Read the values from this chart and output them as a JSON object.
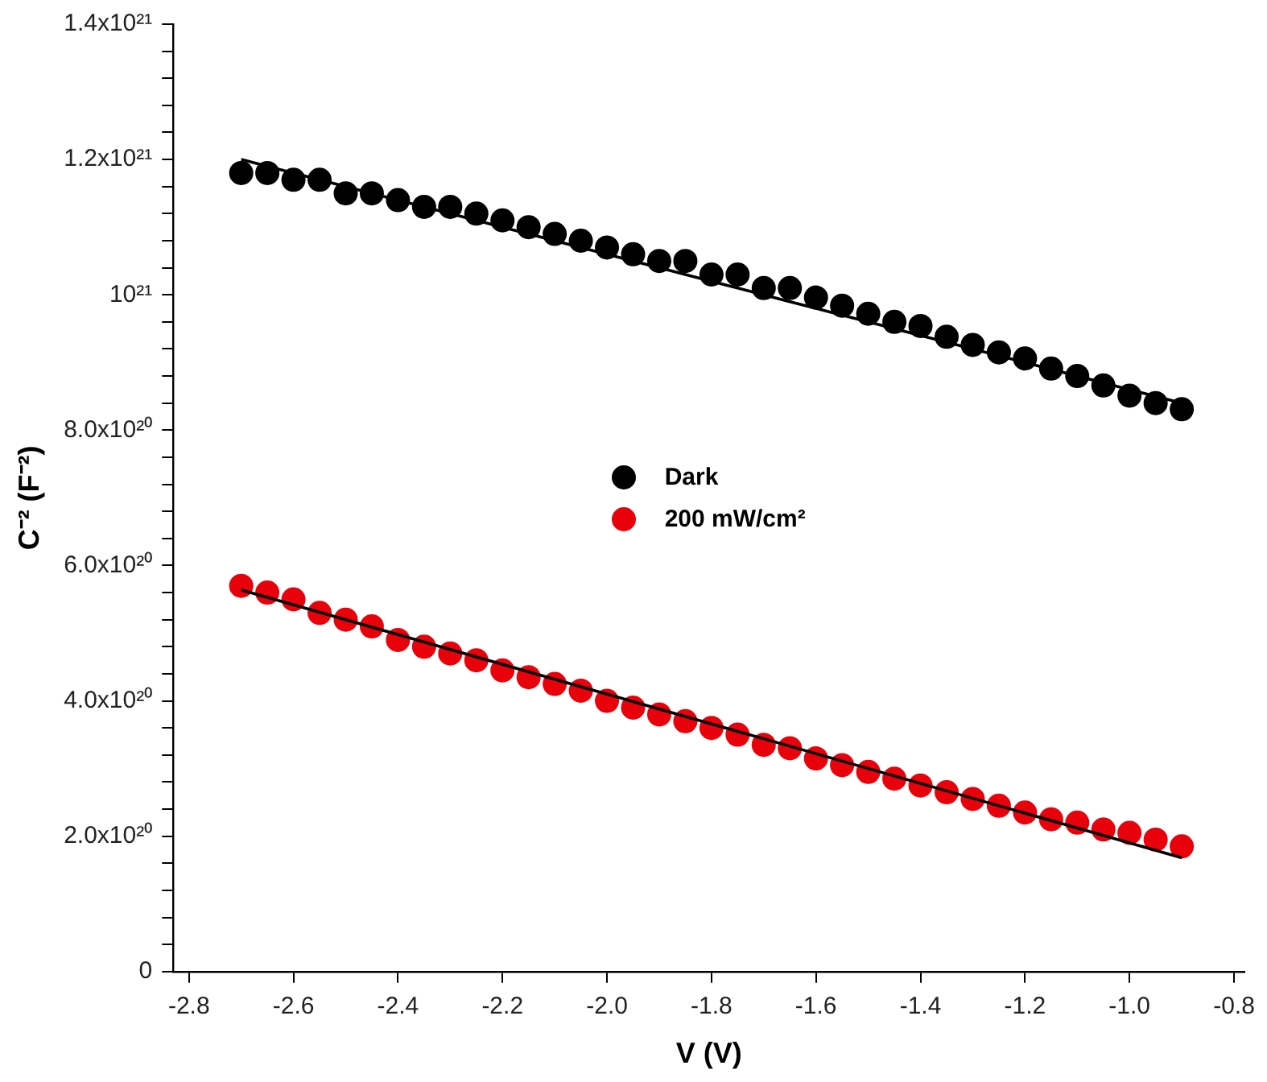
{
  "chart_data": {
    "type": "scatter",
    "xlabel": "V (V)",
    "ylabel": "C⁻² (F⁻²)",
    "xlim": [
      -2.83,
      -0.78
    ],
    "xticks": [
      -2.8,
      -2.6,
      -2.4,
      -2.2,
      {
        "value": -2,
        "label": "-2.0"
      },
      -1.8,
      -1.6,
      -1.4,
      -1.2,
      {
        "value": -1,
        "label": "-1.0"
      },
      -0.8
    ],
    "ylim": [
      0,
      1.4e+21
    ],
    "yticks": [
      {
        "value": 0,
        "label": "0"
      },
      {
        "value": 4e+19,
        "label": null
      },
      {
        "value": 8e+19,
        "label": null
      },
      {
        "value": 1.2e+20,
        "label": null
      },
      {
        "value": 1.6e+20,
        "label": null
      },
      {
        "value": 2e+20,
        "label": "2.0x10²⁰"
      },
      {
        "value": 2.4e+20,
        "label": null
      },
      {
        "value": 2.8e+20,
        "label": null
      },
      {
        "value": 3.2e+20,
        "label": null
      },
      {
        "value": 3.6e+20,
        "label": null
      },
      {
        "value": 4e+20,
        "label": "4.0x10²⁰"
      },
      {
        "value": 4.4e+20,
        "label": null
      },
      {
        "value": 4.8e+20,
        "label": null
      },
      {
        "value": 5.2e+20,
        "label": null
      },
      {
        "value": 5.6e+20,
        "label": null
      },
      {
        "value": 6e+20,
        "label": "6.0x10²⁰"
      },
      {
        "value": 6.4e+20,
        "label": null
      },
      {
        "value": 6.8e+20,
        "label": null
      },
      {
        "value": 7.2e+20,
        "label": null
      },
      {
        "value": 7.6e+20,
        "label": null
      },
      {
        "value": 8e+20,
        "label": "8.0x10²⁰"
      },
      {
        "value": 8.4e+20,
        "label": null
      },
      {
        "value": 8.8e+20,
        "label": null
      },
      {
        "value": 9.2e+20,
        "label": null
      },
      {
        "value": 9.6e+20,
        "label": null
      },
      {
        "value": 1e+21,
        "label": "10²¹"
      },
      {
        "value": 1.04e+21,
        "label": null
      },
      {
        "value": 1.08e+21,
        "label": null
      },
      {
        "value": 1.12e+21,
        "label": null
      },
      {
        "value": 1.16e+21,
        "label": null
      },
      {
        "value": 1.2e+21,
        "label": "1.2x10²¹"
      },
      {
        "value": 1.24e+21,
        "label": null
      },
      {
        "value": 1.28e+21,
        "label": null
      },
      {
        "value": 1.32e+21,
        "label": null
      },
      {
        "value": 1.36e+21,
        "label": null
      },
      {
        "value": 1.4e+21,
        "label": "1.4x10²¹"
      }
    ],
    "x": [
      -2.7,
      -2.65,
      -2.6,
      -2.55,
      -2.5,
      -2.45,
      -2.4,
      -2.35,
      -2.3,
      -2.25,
      -2.2,
      -2.15,
      -2.1,
      -2.05,
      -2,
      -1.95,
      -1.9,
      -1.85,
      -1.8,
      -1.75,
      -1.7,
      -1.65,
      -1.6,
      -1.55,
      -1.5,
      -1.45,
      -1.4,
      -1.35,
      -1.3,
      -1.25,
      -1.2,
      -1.15,
      -1.1,
      -1.05,
      -1,
      -0.95,
      -0.9
    ],
    "marker": "circle",
    "legend": "center",
    "grid": false,
    "series": [
      {
        "name": "Dark",
        "type": "scatter",
        "color": "#000000",
        "values": [
          1.18e+21,
          1.18e+21,
          1.17e+21,
          1.17e+21,
          1.15e+21,
          1.15e+21,
          1.14e+21,
          1.13e+21,
          1.13e+21,
          1.12e+21,
          1.11e+21,
          1.1e+21,
          1.09e+21,
          1.08e+21,
          1.07e+21,
          1.06e+21,
          1.05e+21,
          1.05e+21,
          1.03e+21,
          1.03e+21,
          1.01e+21,
          1.01e+21,
          9.96e+20,
          9.84e+20,
          9.72e+20,
          9.6e+20,
          9.54e+20,
          9.38e+20,
          9.26e+20,
          9.15e+20,
          9.06e+20,
          8.91e+20,
          8.8e+20,
          8.66e+20,
          8.51e+20,
          8.4e+20,
          8.31e+20
        ]
      },
      {
        "name": "200 mW/cm²",
        "type": "scatter",
        "color": "#e8000b",
        "values": [
          5.7e+20,
          5.6e+20,
          5.5e+20,
          5.3e+20,
          5.2e+20,
          5.1e+20,
          4.9e+20,
          4.8e+20,
          4.7e+20,
          4.6e+20,
          4.45e+20,
          4.35e+20,
          4.25e+20,
          4.15e+20,
          4e+20,
          3.9e+20,
          3.8e+20,
          3.7e+20,
          3.6e+20,
          3.5e+20,
          3.35e+20,
          3.3e+20,
          3.15e+20,
          3.05e+20,
          2.95e+20,
          2.85e+20,
          2.75e+20,
          2.65e+20,
          2.55e+20,
          2.45e+20,
          2.35e+20,
          2.25e+20,
          2.2e+20,
          2.1e+20,
          2.05e+20,
          1.95e+20,
          1.85e+20
        ]
      },
      {
        "type": "line",
        "color": "#000000",
        "marker": "none",
        "values": [
          1.2e+21,
          1.19e+21,
          1.18e+21,
          1.17e+21,
          1.16e+21,
          1.15e+21,
          1.14e+21,
          1.13e+21,
          1.12e+21,
          1.11e+21,
          1.1e+21,
          1.09e+21,
          1.08e+21,
          1.07e+21,
          1.06e+21,
          1.05e+21,
          1.04e+21,
          1.03e+21,
          1.02e+21,
          1.01e+21,
          1e+21,
          9.9e+20,
          9.8e+20,
          9.7e+20,
          9.6e+20,
          9.5e+20,
          9.4e+20,
          9.3e+20,
          9.2e+20,
          9.1e+20,
          9e+20,
          8.9e+20,
          8.8e+20,
          8.7e+20,
          8.6e+20,
          8.5e+20,
          8.4e+20
        ]
      },
      {
        "type": "line",
        "color": "#000000",
        "marker": "none",
        "values": [
          5.64e+20,
          5.53e+20,
          5.42e+20,
          5.31e+20,
          5.2e+20,
          5.09e+20,
          4.98e+20,
          4.87e+20,
          4.76e+20,
          4.65e+20,
          4.54e+20,
          4.43e+20,
          4.32e+20,
          4.21e+20,
          4.1e+20,
          3.99e+20,
          3.88e+20,
          3.77e+20,
          3.66e+20,
          3.55e+20,
          3.44e+20,
          3.33e+20,
          3.22e+20,
          3.11e+20,
          3e+20,
          2.89e+20,
          2.78e+20,
          2.67e+20,
          2.56e+20,
          2.45e+20,
          2.34e+20,
          2.23e+20,
          2.12e+20,
          2.01e+20,
          1.9e+20,
          1.79e+20,
          1.68e+20
        ]
      }
    ]
  }
}
